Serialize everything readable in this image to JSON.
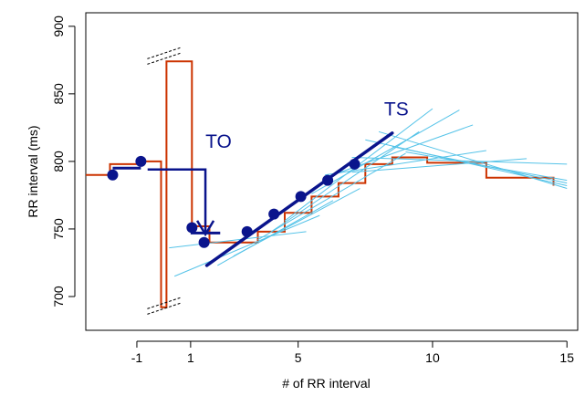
{
  "chart_data": {
    "type": "line",
    "title": "",
    "xlabel": "# of RR interval",
    "ylabel": "RR interval (ms)",
    "xlim": [
      -2.9,
      15.4
    ],
    "ylim": [
      675,
      910
    ],
    "x_ticks": [
      {
        "value": -1,
        "label": "-1"
      },
      {
        "value": 1,
        "label": "1"
      },
      {
        "value": 5,
        "label": "5"
      },
      {
        "value": 10,
        "label": "10"
      },
      {
        "value": 15,
        "label": "15"
      }
    ],
    "y_ticks": [
      {
        "value": 700,
        "label": "700"
      },
      {
        "value": 750,
        "label": "750"
      },
      {
        "value": 800,
        "label": "800"
      },
      {
        "value": 850,
        "label": "850"
      },
      {
        "value": 900,
        "label": "900"
      }
    ],
    "grid": false,
    "colors": {
      "rr_step": "#cc3300",
      "tangents": "#55c3e8",
      "dots": "#0a148c",
      "arrow": "#0a148c",
      "ts_line": "#0a148c",
      "axis": "#000000"
    },
    "rr_step_series": {
      "points": [
        [
          -2.9,
          790
        ],
        [
          -2.0,
          790
        ],
        [
          -2.0,
          798
        ],
        [
          -1.0,
          798
        ],
        [
          -1.0,
          800
        ],
        [
          -0.1,
          800
        ],
        [
          -0.1,
          692
        ],
        [
          0.1,
          692
        ],
        [
          0.1,
          874
        ],
        [
          1.05,
          874
        ],
        [
          1.05,
          752
        ],
        [
          1.7,
          752
        ],
        [
          1.7,
          740
        ],
        [
          3.5,
          740
        ],
        [
          3.5,
          748
        ],
        [
          4.5,
          748
        ],
        [
          4.5,
          762
        ],
        [
          5.5,
          762
        ],
        [
          5.5,
          774
        ],
        [
          6.5,
          774
        ],
        [
          6.5,
          784
        ],
        [
          7.5,
          784
        ],
        [
          7.5,
          798
        ],
        [
          8.5,
          798
        ],
        [
          8.5,
          803
        ],
        [
          9.8,
          803
        ],
        [
          9.8,
          799
        ],
        [
          12.0,
          799
        ],
        [
          12.0,
          788
        ],
        [
          14.5,
          788
        ],
        [
          14.5,
          782
        ]
      ]
    },
    "dots": {
      "x": [
        -1.9,
        -0.85,
        1.05,
        1.5,
        3.1,
        4.1,
        5.1,
        6.1,
        7.1
      ],
      "y": [
        790,
        800,
        751,
        740,
        748,
        761,
        774,
        786,
        798
      ]
    },
    "tangent_lines": [
      {
        "x": [
          0.2,
          5.3
        ],
        "y": [
          736,
          748
        ]
      },
      {
        "x": [
          0.4,
          5.8
        ],
        "y": [
          715,
          760
        ]
      },
      {
        "x": [
          2.0,
          6.3
        ],
        "y": [
          723,
          771
        ]
      },
      {
        "x": [
          2.6,
          7.3
        ],
        "y": [
          730,
          780
        ]
      },
      {
        "x": [
          3.5,
          9.0
        ],
        "y": [
          742,
          806
        ]
      },
      {
        "x": [
          4.0,
          9.5
        ],
        "y": [
          748,
          822
        ]
      },
      {
        "x": [
          4.5,
          10.0
        ],
        "y": [
          756,
          839
        ]
      },
      {
        "x": [
          5.5,
          11.0
        ],
        "y": [
          776,
          838
        ]
      },
      {
        "x": [
          6.0,
          11.5
        ],
        "y": [
          788,
          827
        ]
      },
      {
        "x": [
          6.0,
          12.0
        ],
        "y": [
          790,
          808
        ]
      },
      {
        "x": [
          7.0,
          13.5
        ],
        "y": [
          792,
          802
        ]
      },
      {
        "x": [
          7.0,
          15.0
        ],
        "y": [
          803,
          798
        ]
      },
      {
        "x": [
          7.5,
          15.0
        ],
        "y": [
          816,
          782
        ]
      },
      {
        "x": [
          8.0,
          15.0
        ],
        "y": [
          822,
          780
        ]
      },
      {
        "x": [
          8.5,
          15.0
        ],
        "y": [
          811,
          784
        ]
      },
      {
        "x": [
          9.0,
          15.0
        ],
        "y": [
          807,
          786
        ]
      }
    ],
    "ts_line": {
      "x": [
        1.6,
        8.5
      ],
      "y": [
        723,
        821
      ]
    },
    "to_baseline": {
      "x": [
        -1.9,
        -0.85
      ],
      "y": [
        795,
        795
      ]
    },
    "to_arrow": {
      "x_start": -0.6,
      "x_end": 1.55,
      "y_level": 794,
      "y_tip": 746
    },
    "to_flat": {
      "x": [
        1.0,
        2.1
      ],
      "y": [
        747,
        747
      ]
    },
    "break_marks": [
      {
        "x": 0.0,
        "y": 693
      },
      {
        "x": 0.0,
        "y": 878
      }
    ],
    "annotations": [
      {
        "text": "TO",
        "x": 1.55,
        "y": 810,
        "color": "#0a148c"
      },
      {
        "text": "TS",
        "x": 8.2,
        "y": 834,
        "color": "#0a148c"
      }
    ]
  }
}
